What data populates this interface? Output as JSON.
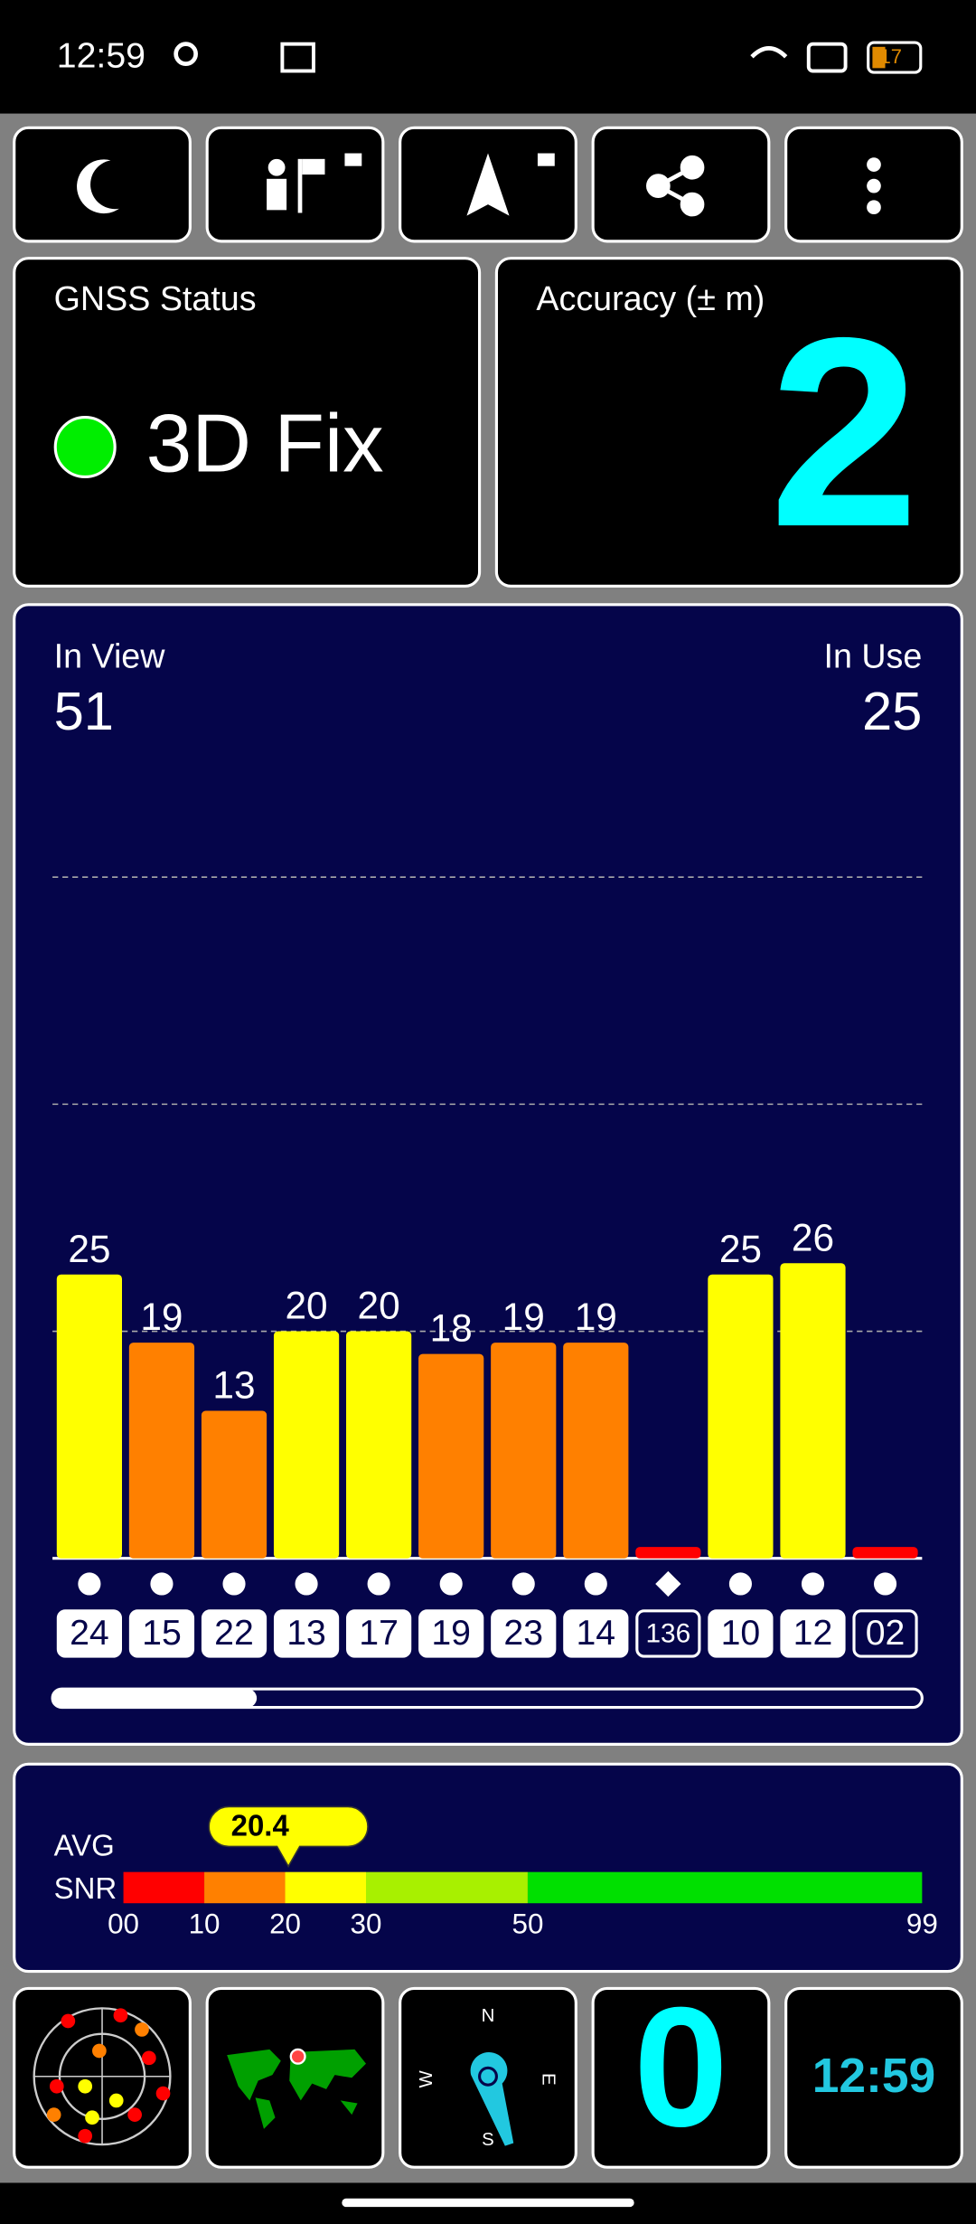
{
  "status_bar": {
    "time": "12:59",
    "battery": "17"
  },
  "gnss_status": {
    "label": "GNSS Status",
    "value": "3D Fix"
  },
  "accuracy": {
    "label": "Accuracy (± m)",
    "value": "2"
  },
  "chart_data": {
    "type": "bar",
    "in_view_label": "In View",
    "in_view": 51,
    "in_use_label": "In Use",
    "in_use": 25,
    "ylim": [
      0,
      61
    ],
    "grid_values": [
      20,
      40,
      60
    ],
    "categories": [
      "24",
      "15",
      "22",
      "13",
      "17",
      "19",
      "23",
      "14",
      "136",
      "10",
      "12",
      "02"
    ],
    "values": [
      25,
      19,
      13,
      20,
      20,
      18,
      19,
      19,
      1,
      25,
      26,
      1
    ],
    "colors": [
      "#ffff00",
      "#ff8000",
      "#ff8000",
      "#ffff00",
      "#ffff00",
      "#ff8000",
      "#ff8000",
      "#ff8000",
      "#ff0000",
      "#ffff00",
      "#ffff00",
      "#ff0000"
    ],
    "labeled": [
      true,
      true,
      true,
      true,
      true,
      true,
      true,
      true,
      false,
      true,
      true,
      false
    ],
    "used": [
      true,
      true,
      true,
      true,
      true,
      true,
      true,
      true,
      false,
      true,
      true,
      false
    ],
    "shapes": [
      "circle",
      "circle",
      "circle",
      "circle",
      "circle",
      "circle",
      "circle",
      "circle",
      "diamond",
      "circle",
      "circle",
      "circle"
    ]
  },
  "avg_snr": {
    "label_1": "AVG",
    "label_2": "SNR",
    "value": 20.4,
    "ticks": [
      {
        "value": 0,
        "label": "00"
      },
      10,
      20,
      30,
      50,
      99
    ],
    "colors": [
      "#ff0000",
      "#ff8000",
      "#ffff00",
      "#a8f000",
      "#00e000"
    ]
  },
  "speed": "0",
  "clock": "12:59",
  "compass": {
    "n": "N",
    "e": "E",
    "s": "S",
    "w": "W"
  }
}
